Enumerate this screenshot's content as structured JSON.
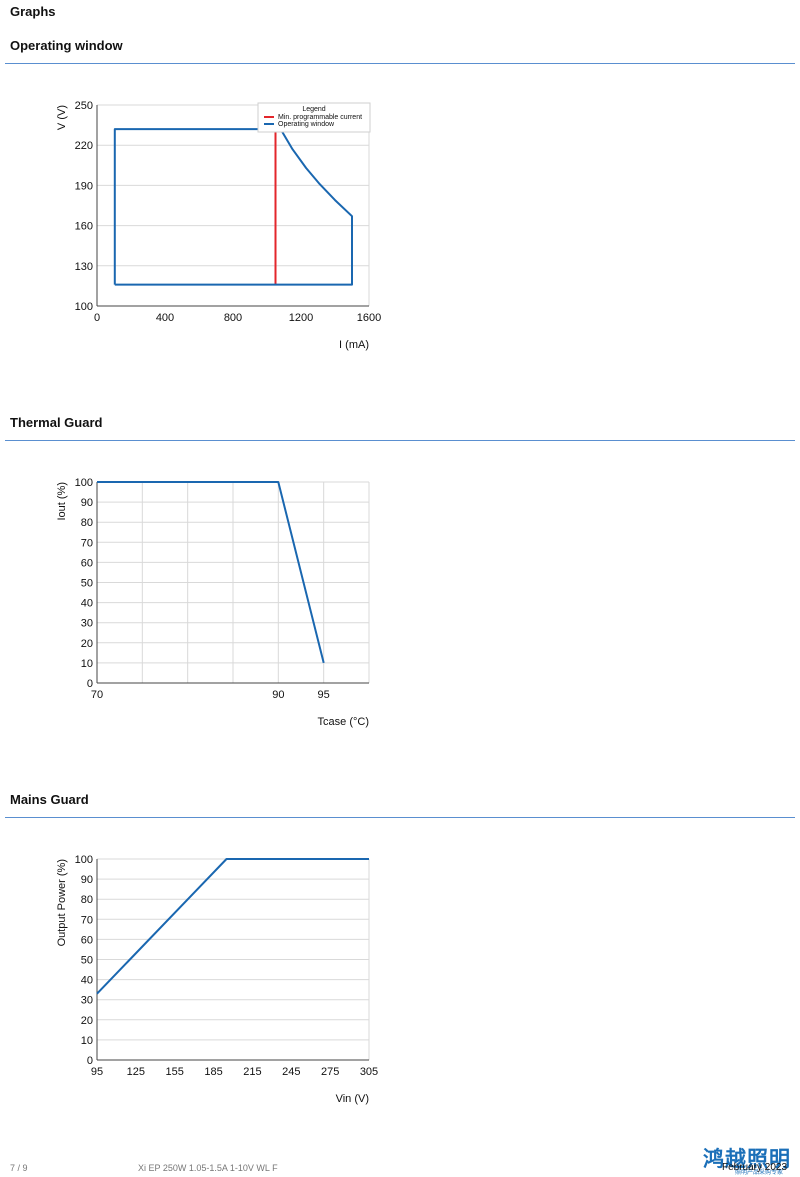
{
  "page": {
    "title": "Graphs"
  },
  "sections": [
    {
      "title": "Operating window"
    },
    {
      "title": "Thermal Guard"
    },
    {
      "title": "Mains Guard"
    }
  ],
  "chart_data": [
    {
      "type": "line",
      "title": "",
      "xlabel": "I (mA)",
      "ylabel": "V (V)",
      "xlim": [
        0,
        1600
      ],
      "ylim": [
        100,
        250
      ],
      "xticks": [
        0,
        400,
        800,
        1200,
        1600
      ],
      "yticks": [
        100,
        130,
        160,
        190,
        220,
        250
      ],
      "grid": "horizontal",
      "legend": {
        "title": "Legend",
        "placement": "top-right"
      },
      "series": [
        {
          "name": "Min. programmable current",
          "color": "#e3262b",
          "x": [
            1050,
            1050
          ],
          "y": [
            116,
            232
          ]
        },
        {
          "name": "Operating window",
          "color": "#1a67b0",
          "x": [
            105,
            105,
            1080,
            1150,
            1230,
            1310,
            1400,
            1500,
            1500,
            105
          ],
          "y": [
            116,
            232,
            232,
            217,
            203,
            191,
            179,
            167,
            116,
            116
          ]
        }
      ]
    },
    {
      "type": "line",
      "title": "",
      "xlabel": "Tcase (°C)",
      "ylabel": "Iout (%)",
      "xlim": [
        70,
        100
      ],
      "ylim": [
        0,
        100
      ],
      "xticks": [
        70,
        90,
        95
      ],
      "yticks": [
        0,
        10,
        20,
        30,
        40,
        50,
        60,
        70,
        80,
        90,
        100
      ],
      "xgrid": [
        70,
        75,
        80,
        85,
        90,
        95,
        100
      ],
      "grid": "both",
      "series": [
        {
          "color": "#1a67b0",
          "x": [
            70,
            90,
            95
          ],
          "y": [
            100,
            100,
            10
          ]
        }
      ]
    },
    {
      "type": "line",
      "title": "",
      "xlabel": "Vin (V)",
      "ylabel": "Output Power (%)",
      "xlim": [
        95,
        305
      ],
      "ylim": [
        0,
        100
      ],
      "xticks": [
        95,
        125,
        155,
        185,
        215,
        245,
        275,
        305
      ],
      "yticks": [
        0,
        10,
        20,
        30,
        40,
        50,
        60,
        70,
        80,
        90,
        100
      ],
      "grid": "horizontal",
      "series": [
        {
          "color": "#1a67b0",
          "x": [
            95,
            195,
            305
          ],
          "y": [
            33,
            100,
            100
          ]
        }
      ]
    }
  ],
  "footer": {
    "page_number": "7 / 9",
    "product": "Xi EP 250W 1.05-1.5A 1-10V WL F",
    "date": "February 2023",
    "watermark_brand": "鸿越照明",
    "watermark_sub": "照明产品采购专家"
  }
}
